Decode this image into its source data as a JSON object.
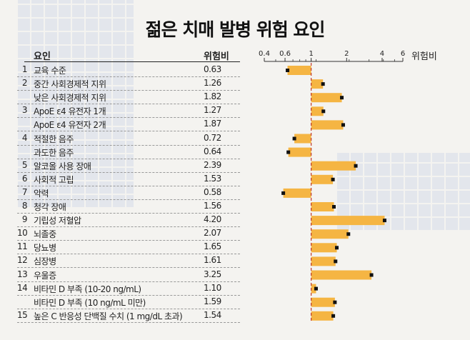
{
  "title": "젊은 치매 발병 위험 요인",
  "chart_data": {
    "type": "bar",
    "scale": "log",
    "baseline": 1,
    "columns": {
      "factor": "요인",
      "value": "위험비"
    },
    "xlabel": "위험비",
    "xlim": [
      0.4,
      6
    ],
    "xticks": [
      0.4,
      0.6,
      1,
      2,
      4,
      6
    ],
    "xtick_labels": [
      "0.4",
      "0.6",
      "1",
      "2",
      "4",
      "6"
    ],
    "bar_color": "#f5b543",
    "reference_line_color": "#c0392b",
    "rows": [
      {
        "num": "1",
        "label": "교육 수준",
        "value": 0.63,
        "text": "0.63"
      },
      {
        "num": "2",
        "label": "중간 사회경제적 지위",
        "value": 1.26,
        "text": "1.26"
      },
      {
        "num": "",
        "label": "낮은 사회경제적 지위",
        "value": 1.82,
        "text": "1.82"
      },
      {
        "num": "3",
        "label": "ApoE ε4 유전자 1개",
        "value": 1.27,
        "text": "1.27"
      },
      {
        "num": "",
        "label": "ApoE ε4 유전자 2개",
        "value": 1.87,
        "text": "1.87"
      },
      {
        "num": "4",
        "label": "적절한 음주",
        "value": 0.72,
        "text": "0.72"
      },
      {
        "num": "",
        "label": "과도한 음주",
        "value": 0.64,
        "text": "0.64"
      },
      {
        "num": "5",
        "label": "알코올 사용 장애",
        "value": 2.39,
        "text": "2.39"
      },
      {
        "num": "6",
        "label": "사회적 고립",
        "value": 1.53,
        "text": "1.53"
      },
      {
        "num": "7",
        "label": "악력",
        "value": 0.58,
        "text": "0.58"
      },
      {
        "num": "8",
        "label": "청각 장애",
        "value": 1.56,
        "text": "1.56"
      },
      {
        "num": "9",
        "label": "기립성 저혈압",
        "value": 4.2,
        "text": "4.20"
      },
      {
        "num": "10",
        "label": "뇌졸중",
        "value": 2.07,
        "text": "2.07"
      },
      {
        "num": "11",
        "label": "당뇨병",
        "value": 1.65,
        "text": "1.65"
      },
      {
        "num": "12",
        "label": "심장병",
        "value": 1.61,
        "text": "1.61"
      },
      {
        "num": "13",
        "label": "우울증",
        "value": 3.25,
        "text": "3.25"
      },
      {
        "num": "14",
        "label": "비타민 D 부족 (10-20 ng/mL)",
        "value": 1.1,
        "text": "1.10"
      },
      {
        "num": "",
        "label": "비타민 D 부족 (10 ng/mL 미만)",
        "value": 1.59,
        "text": "1.59"
      },
      {
        "num": "15",
        "label": "높은 C 반응성 단백질 수치 (1 mg/dL 초과)",
        "value": 1.54,
        "text": "1.54"
      }
    ]
  }
}
